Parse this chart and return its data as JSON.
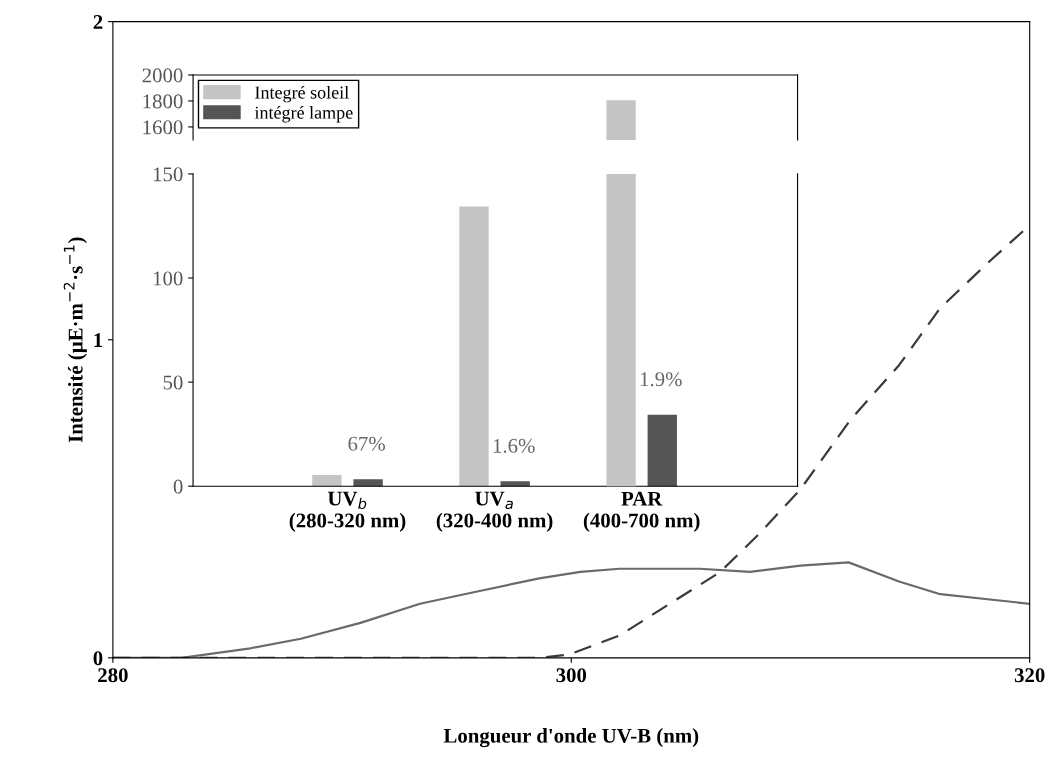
{
  "chart_data": [
    {
      "type": "line",
      "xlabel": "Longueur d'onde UV-B (nm)",
      "ylabel": "Intensité (µE·m$^{−2}$·s$^{−1}$)",
      "xlim": [
        280,
        320
      ],
      "ylim": [
        0,
        2
      ],
      "xticks": [
        280,
        300,
        320
      ],
      "yticks": [
        0,
        1,
        2
      ],
      "grid": false,
      "legend": false,
      "series": [
        {
          "color": "#6a6a6a",
          "line_style": "solid",
          "x": [
            280,
            283,
            286,
            288.2,
            290.8,
            293.4,
            296,
            298.6,
            300.4,
            302.1,
            305.6,
            307.8,
            310,
            312.1,
            314.3,
            316.1,
            320
          ],
          "values": [
            0,
            0,
            0.03,
            0.06,
            0.11,
            0.17,
            0.21,
            0.25,
            0.27,
            0.28,
            0.28,
            0.27,
            0.29,
            0.3,
            0.24,
            0.2,
            0.17
          ]
        },
        {
          "color": "#3a3a3a",
          "line_style": "dashed",
          "x": [
            280,
            290,
            298.6,
            299.9,
            302.1,
            304.3,
            306.5,
            308.2,
            310,
            312.2,
            314.3,
            316.1,
            318.3,
            320
          ],
          "values": [
            0,
            0,
            0,
            0.01,
            0.07,
            0.17,
            0.27,
            0.39,
            0.53,
            0.75,
            0.92,
            1.1,
            1.25,
            1.36
          ]
        }
      ]
    },
    {
      "type": "bar",
      "categories": [
        "UV$_{b}$\n(280-320 nm)",
        "UV$_{a}$\n(320-400 nm)",
        "PAR\n(400-700 nm)"
      ],
      "ylim": [
        0,
        150
      ],
      "yticks": [
        0,
        50,
        100,
        150
      ],
      "grid": false,
      "legend": false,
      "series": [
        {
          "color": "#c4c4c4",
          "values": [
            5,
            134,
            null
          ]
        },
        {
          "color": "#555555",
          "values": [
            3,
            2,
            34
          ]
        }
      ],
      "annotations": [
        "67%",
        "1.6%",
        "1.9%"
      ]
    },
    {
      "type": "bar",
      "categories": [
        null,
        null,
        null
      ],
      "ylim": [
        1500,
        2000
      ],
      "yticks": [
        1600,
        1800,
        2000
      ],
      "tick_labels": "y",
      "grid": false,
      "legend": "top left",
      "series": [
        {
          "name": "Integré soleil",
          "color": "#c4c4c4",
          "values": [
            null,
            null,
            1800
          ]
        },
        {
          "name": "intégré lampe",
          "color": "#555555",
          "values": [
            null,
            null,
            null
          ]
        }
      ]
    }
  ]
}
